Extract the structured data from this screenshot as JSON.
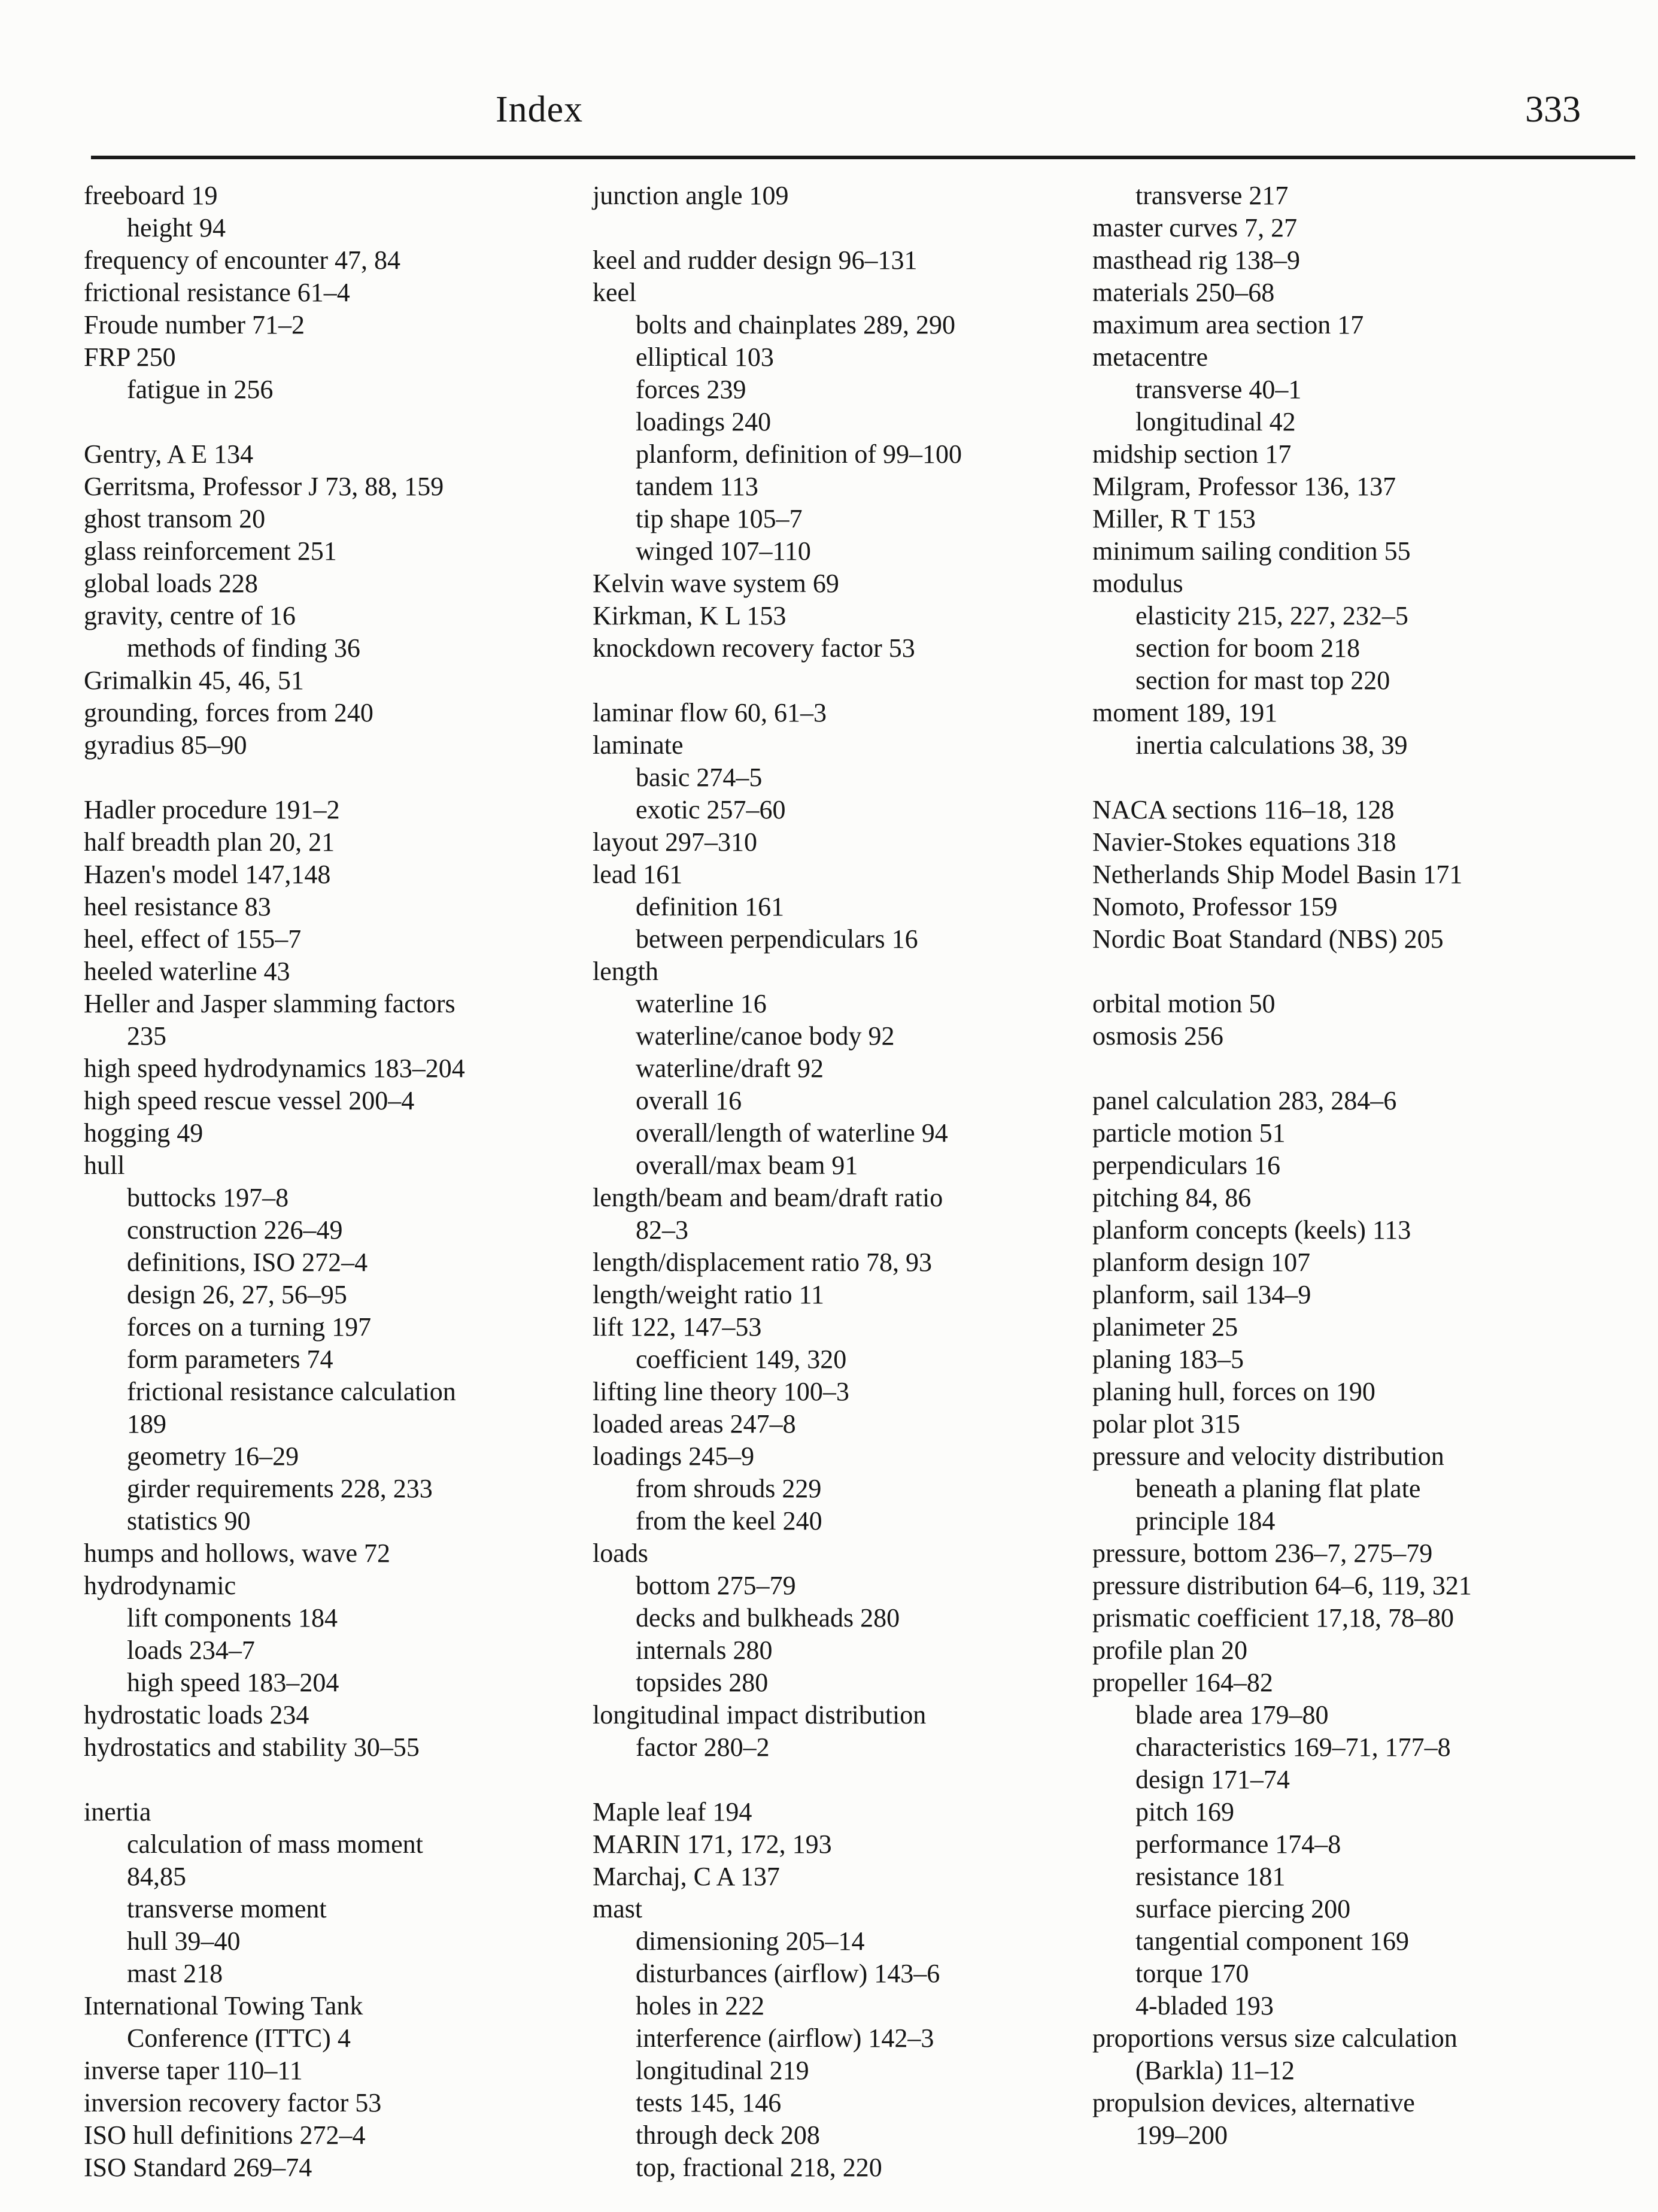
{
  "header": {
    "title": "Index",
    "page_number": "333"
  },
  "columns": [
    {
      "name": "column-1",
      "lines": [
        [
          "freeboard 19",
          0
        ],
        [
          "height 94",
          1
        ],
        [
          "frequency of encounter 47, 84",
          0
        ],
        [
          "frictional resistance 61–4",
          0
        ],
        [
          "Froude number 71–2",
          0
        ],
        [
          "FRP 250",
          0
        ],
        [
          "fatigue in 256",
          1
        ],
        [
          "",
          -1
        ],
        [
          "Gentry, A E 134",
          0
        ],
        [
          "Gerritsma, Professor J 73, 88, 159",
          0
        ],
        [
          "ghost transom 20",
          0
        ],
        [
          "glass reinforcement 251",
          0
        ],
        [
          "global loads 228",
          0
        ],
        [
          "gravity, centre of 16",
          0
        ],
        [
          "methods of finding 36",
          1
        ],
        [
          "Grimalkin 45, 46, 51",
          0
        ],
        [
          "grounding, forces from 240",
          0
        ],
        [
          "gyradius 85–90",
          0
        ],
        [
          "",
          -1
        ],
        [
          "Hadler procedure 191–2",
          0
        ],
        [
          "half breadth plan 20, 21",
          0
        ],
        [
          "Hazen's model 147,148",
          0
        ],
        [
          "heel resistance 83",
          0
        ],
        [
          "heel, effect of 155–7",
          0
        ],
        [
          "heeled waterline 43",
          0
        ],
        [
          "Heller and Jasper slamming factors",
          0
        ],
        [
          "235",
          1
        ],
        [
          "high speed hydrodynamics 183–204",
          0
        ],
        [
          "high speed rescue vessel 200–4",
          0
        ],
        [
          "hogging 49",
          0
        ],
        [
          "hull",
          0
        ],
        [
          "buttocks 197–8",
          1
        ],
        [
          "construction 226–49",
          1
        ],
        [
          "definitions, ISO 272–4",
          1
        ],
        [
          "design 26, 27, 56–95",
          1
        ],
        [
          "forces on a turning 197",
          1
        ],
        [
          "form parameters 74",
          1
        ],
        [
          "frictional resistance calculation",
          1
        ],
        [
          "189",
          1
        ],
        [
          "geometry 16–29",
          1
        ],
        [
          "girder requirements 228, 233",
          1
        ],
        [
          "statistics 90",
          1
        ],
        [
          "humps and hollows, wave 72",
          0
        ],
        [
          "hydrodynamic",
          0
        ],
        [
          "lift components 184",
          1
        ],
        [
          "loads 234–7",
          1
        ],
        [
          "high speed 183–204",
          1
        ],
        [
          "hydrostatic loads 234",
          0
        ],
        [
          "hydrostatics and stability 30–55",
          0
        ],
        [
          "",
          -1
        ],
        [
          "inertia",
          0
        ],
        [
          "calculation of mass moment",
          1
        ],
        [
          "84,85",
          1
        ],
        [
          "transverse moment",
          1
        ],
        [
          "hull 39–40",
          1
        ],
        [
          "mast 218",
          1
        ],
        [
          "International Towing Tank",
          0
        ],
        [
          "Conference (ITTC) 4",
          1
        ],
        [
          "inverse taper 110–11",
          0
        ],
        [
          "inversion recovery factor 53",
          0
        ],
        [
          "ISO hull definitions 272–4",
          0
        ],
        [
          "ISO Standard 269–74",
          0
        ]
      ]
    },
    {
      "name": "column-2",
      "lines": [
        [
          "junction angle 109",
          0
        ],
        [
          "",
          -1
        ],
        [
          "keel and rudder design 96–131",
          0
        ],
        [
          "keel",
          0
        ],
        [
          "bolts and chainplates 289, 290",
          1
        ],
        [
          "elliptical 103",
          1
        ],
        [
          "forces 239",
          1
        ],
        [
          "loadings 240",
          1
        ],
        [
          "planform, definition of 99–100",
          1
        ],
        [
          "tandem 113",
          1
        ],
        [
          "tip shape 105–7",
          1
        ],
        [
          "winged 107–110",
          1
        ],
        [
          "Kelvin wave system 69",
          0
        ],
        [
          "Kirkman, K L 153",
          0
        ],
        [
          "knockdown recovery factor 53",
          0
        ],
        [
          "",
          -1
        ],
        [
          "laminar flow 60, 61–3",
          0
        ],
        [
          "laminate",
          0
        ],
        [
          "basic 274–5",
          1
        ],
        [
          "exotic 257–60",
          1
        ],
        [
          "layout 297–310",
          0
        ],
        [
          "lead 161",
          0
        ],
        [
          "definition 161",
          1
        ],
        [
          "between perpendiculars 16",
          1
        ],
        [
          "length",
          0
        ],
        [
          "waterline 16",
          1
        ],
        [
          "waterline/canoe body 92",
          1
        ],
        [
          "waterline/draft 92",
          1
        ],
        [
          "overall 16",
          1
        ],
        [
          "overall/length of waterline 94",
          1
        ],
        [
          "overall/max beam 91",
          1
        ],
        [
          "length/beam and beam/draft ratio",
          0
        ],
        [
          "82–3",
          1
        ],
        [
          "length/displacement ratio 78, 93",
          0
        ],
        [
          "length/weight ratio 11",
          0
        ],
        [
          "lift 122, 147–53",
          0
        ],
        [
          "coefficient 149, 320",
          1
        ],
        [
          "lifting line theory 100–3",
          0
        ],
        [
          "loaded areas 247–8",
          0
        ],
        [
          "loadings 245–9",
          0
        ],
        [
          "from shrouds 229",
          1
        ],
        [
          "from the keel 240",
          1
        ],
        [
          "loads",
          0
        ],
        [
          "bottom 275–79",
          1
        ],
        [
          "decks and bulkheads 280",
          1
        ],
        [
          "internals 280",
          1
        ],
        [
          "topsides 280",
          1
        ],
        [
          "longitudinal impact distribution",
          0
        ],
        [
          "factor 280–2",
          1
        ],
        [
          "",
          -1
        ],
        [
          "Maple leaf 194",
          0
        ],
        [
          "MARIN 171, 172, 193",
          0
        ],
        [
          "Marchaj, C A 137",
          0
        ],
        [
          "mast",
          0
        ],
        [
          "dimensioning 205–14",
          1
        ],
        [
          "disturbances (airflow) 143–6",
          1
        ],
        [
          "holes in 222",
          1
        ],
        [
          "interference (airflow) 142–3",
          1
        ],
        [
          "longitudinal 219",
          1
        ],
        [
          "tests 145, 146",
          1
        ],
        [
          "through deck 208",
          1
        ],
        [
          "top, fractional 218, 220",
          1
        ]
      ]
    },
    {
      "name": "column-3",
      "lines": [
        [
          "transverse 217",
          1
        ],
        [
          "master curves 7, 27",
          0
        ],
        [
          "masthead rig 138–9",
          0
        ],
        [
          "materials 250–68",
          0
        ],
        [
          "maximum area section 17",
          0
        ],
        [
          "metacentre",
          0
        ],
        [
          "transverse 40–1",
          1
        ],
        [
          "longitudinal 42",
          1
        ],
        [
          "midship section 17",
          0
        ],
        [
          "Milgram, Professor 136, 137",
          0
        ],
        [
          "Miller, R T 153",
          0
        ],
        [
          "minimum sailing condition 55",
          0
        ],
        [
          "modulus",
          0
        ],
        [
          "elasticity 215, 227, 232–5",
          1
        ],
        [
          "section for boom 218",
          1
        ],
        [
          "section for mast top 220",
          1
        ],
        [
          "moment 189, 191",
          0
        ],
        [
          "inertia calculations 38, 39",
          1
        ],
        [
          "",
          -1
        ],
        [
          "NACA sections 116–18, 128",
          0
        ],
        [
          "Navier-Stokes equations 318",
          0
        ],
        [
          "Netherlands Ship Model Basin 171",
          0
        ],
        [
          "Nomoto, Professor 159",
          0
        ],
        [
          "Nordic Boat Standard (NBS) 205",
          0
        ],
        [
          "",
          -1
        ],
        [
          "orbital motion 50",
          0
        ],
        [
          "osmosis 256",
          0
        ],
        [
          "",
          -1
        ],
        [
          "panel calculation 283, 284–6",
          0
        ],
        [
          "particle motion 51",
          0
        ],
        [
          "perpendiculars 16",
          0
        ],
        [
          "pitching  84, 86",
          0
        ],
        [
          "planform concepts (keels) 113",
          0
        ],
        [
          "planform design 107",
          0
        ],
        [
          "planform, sail 134–9",
          0
        ],
        [
          "planimeter 25",
          0
        ],
        [
          "planing 183–5",
          0
        ],
        [
          "planing hull, forces on 190",
          0
        ],
        [
          "polar plot 315",
          0
        ],
        [
          "pressure and velocity distribution",
          0
        ],
        [
          "beneath a planing flat plate",
          1
        ],
        [
          "principle 184",
          1
        ],
        [
          "pressure, bottom 236–7, 275–79",
          0
        ],
        [
          "pressure distribution 64–6, 119, 321",
          0
        ],
        [
          "prismatic coefficient 17,18, 78–80",
          0
        ],
        [
          "profile plan 20",
          0
        ],
        [
          "propeller 164–82",
          0
        ],
        [
          "blade area 179–80",
          1
        ],
        [
          "characteristics 169–71, 177–8",
          1
        ],
        [
          "design 171–74",
          1
        ],
        [
          "pitch 169",
          1
        ],
        [
          "performance 174–8",
          1
        ],
        [
          "resistance 181",
          1
        ],
        [
          "surface piercing 200",
          1
        ],
        [
          "tangential component 169",
          1
        ],
        [
          "torque 170",
          1
        ],
        [
          "4-bladed 193",
          1
        ],
        [
          "proportions versus size calculation",
          0
        ],
        [
          "(Barkla) 11–12",
          1
        ],
        [
          "propulsion devices, alternative",
          0
        ],
        [
          "199–200",
          1
        ]
      ]
    }
  ]
}
